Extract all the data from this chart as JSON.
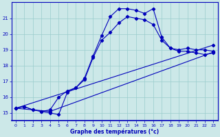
{
  "xlabel": "Graphe des températures (°c)",
  "xlim": [
    -0.5,
    23.5
  ],
  "ylim": [
    14.5,
    22.0
  ],
  "yticks": [
    15,
    16,
    17,
    18,
    19,
    20,
    21
  ],
  "xticks": [
    0,
    1,
    2,
    3,
    4,
    5,
    6,
    7,
    8,
    9,
    10,
    11,
    12,
    13,
    14,
    15,
    16,
    17,
    18,
    19,
    20,
    21,
    22,
    23
  ],
  "bg_color": "#cce8e8",
  "grid_color": "#99cccc",
  "line_color": "#0000bb",
  "lines": [
    {
      "x": [
        0,
        1,
        2,
        3,
        4,
        5,
        6,
        7,
        8,
        9,
        10,
        11,
        12,
        13,
        14,
        15,
        16,
        17,
        18,
        19,
        20,
        21,
        22,
        23
      ],
      "y": [
        15.3,
        15.4,
        15.2,
        15.1,
        15.0,
        14.9,
        16.3,
        16.6,
        17.2,
        18.6,
        19.9,
        21.1,
        21.6,
        21.6,
        21.5,
        21.3,
        21.6,
        19.8,
        19.1,
        19.0,
        19.1,
        19.0,
        19.0,
        18.9
      ]
    },
    {
      "x": [
        0,
        1,
        2,
        3,
        4,
        5,
        6,
        7,
        8,
        9,
        10,
        11,
        12,
        13,
        14,
        15,
        16,
        17,
        18,
        19,
        20,
        21,
        22,
        23
      ],
      "y": [
        15.3,
        15.4,
        15.2,
        15.1,
        15.2,
        16.0,
        16.4,
        16.6,
        17.1,
        18.5,
        19.6,
        20.1,
        20.7,
        21.1,
        21.0,
        20.9,
        20.6,
        19.6,
        19.1,
        18.9,
        18.9,
        18.8,
        18.7,
        18.8
      ]
    },
    {
      "x": [
        0,
        23
      ],
      "y": [
        15.3,
        19.3
      ]
    },
    {
      "x": [
        0,
        4,
        23
      ],
      "y": [
        15.3,
        15.1,
        18.85
      ]
    }
  ]
}
